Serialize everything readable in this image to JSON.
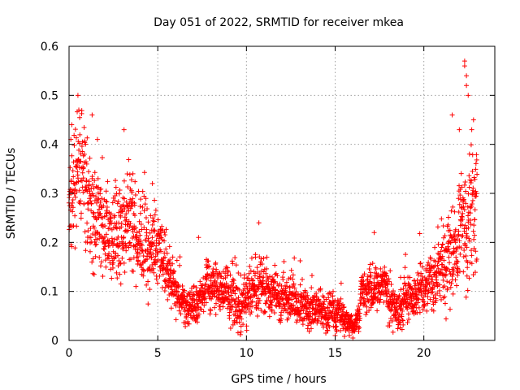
{
  "chart_data": {
    "type": "scatter",
    "title": "Day 051 of 2022, SRMTID for receiver mkea",
    "xlabel": "GPS time / hours",
    "ylabel": "SRMTID / TECUs",
    "xlim": [
      0,
      24
    ],
    "ylim": [
      0,
      0.6
    ],
    "xticks": [
      0,
      5,
      10,
      15,
      20
    ],
    "xtick_labels": [
      "0",
      "5",
      "10",
      "15",
      "20"
    ],
    "yticks": [
      0,
      0.1,
      0.2,
      0.3,
      0.4,
      0.5,
      0.6
    ],
    "ytick_labels": [
      "0",
      "0.1",
      "0.2",
      "0.3",
      "0.4",
      "0.5",
      "0.6"
    ],
    "grid": true,
    "marker": "+",
    "color": "#ff0000",
    "time_range_hours": [
      0,
      23
    ],
    "baseline_profile": [
      [
        0.0,
        0.3
      ],
      [
        0.3,
        0.3
      ],
      [
        0.5,
        0.35
      ],
      [
        1.0,
        0.3
      ],
      [
        1.5,
        0.25
      ],
      [
        2.0,
        0.24
      ],
      [
        2.5,
        0.22
      ],
      [
        3.0,
        0.24
      ],
      [
        3.5,
        0.22
      ],
      [
        4.0,
        0.2
      ],
      [
        4.5,
        0.19
      ],
      [
        5.0,
        0.18
      ],
      [
        5.5,
        0.15
      ],
      [
        6.0,
        0.11
      ],
      [
        6.5,
        0.07
      ],
      [
        7.0,
        0.07
      ],
      [
        7.5,
        0.1
      ],
      [
        8.0,
        0.11
      ],
      [
        8.5,
        0.1
      ],
      [
        9.0,
        0.1
      ],
      [
        9.5,
        0.08
      ],
      [
        10.0,
        0.09
      ],
      [
        10.5,
        0.11
      ],
      [
        11.0,
        0.1
      ],
      [
        11.5,
        0.09
      ],
      [
        12.0,
        0.08
      ],
      [
        12.5,
        0.08
      ],
      [
        13.0,
        0.07
      ],
      [
        13.5,
        0.06
      ],
      [
        14.0,
        0.06
      ],
      [
        14.5,
        0.05
      ],
      [
        15.0,
        0.06
      ],
      [
        15.5,
        0.05
      ],
      [
        16.0,
        0.02
      ],
      [
        16.3,
        0.04
      ],
      [
        16.5,
        0.09
      ],
      [
        17.0,
        0.11
      ],
      [
        17.5,
        0.11
      ],
      [
        18.0,
        0.08
      ],
      [
        18.5,
        0.07
      ],
      [
        19.0,
        0.09
      ],
      [
        19.5,
        0.09
      ],
      [
        20.0,
        0.11
      ],
      [
        20.5,
        0.13
      ],
      [
        21.0,
        0.15
      ],
      [
        21.5,
        0.16
      ],
      [
        22.0,
        0.2
      ],
      [
        22.5,
        0.25
      ],
      [
        23.0,
        0.28
      ]
    ],
    "spread_profile": [
      [
        0.0,
        0.07
      ],
      [
        2.0,
        0.06
      ],
      [
        4.0,
        0.05
      ],
      [
        5.5,
        0.04
      ],
      [
        6.5,
        0.02
      ],
      [
        8.0,
        0.03
      ],
      [
        10.0,
        0.035
      ],
      [
        12.0,
        0.03
      ],
      [
        14.0,
        0.02
      ],
      [
        15.5,
        0.02
      ],
      [
        16.0,
        0.008
      ],
      [
        16.5,
        0.025
      ],
      [
        18.0,
        0.025
      ],
      [
        20.0,
        0.03
      ],
      [
        21.0,
        0.04
      ],
      [
        22.0,
        0.06
      ],
      [
        23.0,
        0.09
      ]
    ],
    "notable_points": [
      {
        "x": 0.1,
        "y": 0.41
      },
      {
        "x": 0.15,
        "y": 0.44
      },
      {
        "x": 0.5,
        "y": 0.5
      },
      {
        "x": 0.55,
        "y": 0.47
      },
      {
        "x": 1.3,
        "y": 0.46
      },
      {
        "x": 1.6,
        "y": 0.41
      },
      {
        "x": 3.1,
        "y": 0.43
      },
      {
        "x": 3.6,
        "y": 0.34
      },
      {
        "x": 4.7,
        "y": 0.32
      },
      {
        "x": 7.3,
        "y": 0.21
      },
      {
        "x": 10.7,
        "y": 0.24
      },
      {
        "x": 17.2,
        "y": 0.22
      },
      {
        "x": 21.6,
        "y": 0.46
      },
      {
        "x": 22.0,
        "y": 0.43
      },
      {
        "x": 22.3,
        "y": 0.57
      },
      {
        "x": 22.3,
        "y": 0.56
      },
      {
        "x": 22.4,
        "y": 0.54
      },
      {
        "x": 22.4,
        "y": 0.52
      },
      {
        "x": 22.5,
        "y": 0.5
      },
      {
        "x": 22.8,
        "y": 0.45
      },
      {
        "x": 22.7,
        "y": 0.43
      },
      {
        "x": 22.9,
        "y": 0.3
      },
      {
        "x": 15.0,
        "y": 0.01
      },
      {
        "x": 15.8,
        "y": 0.01
      },
      {
        "x": 16.0,
        "y": 0.005
      }
    ]
  }
}
